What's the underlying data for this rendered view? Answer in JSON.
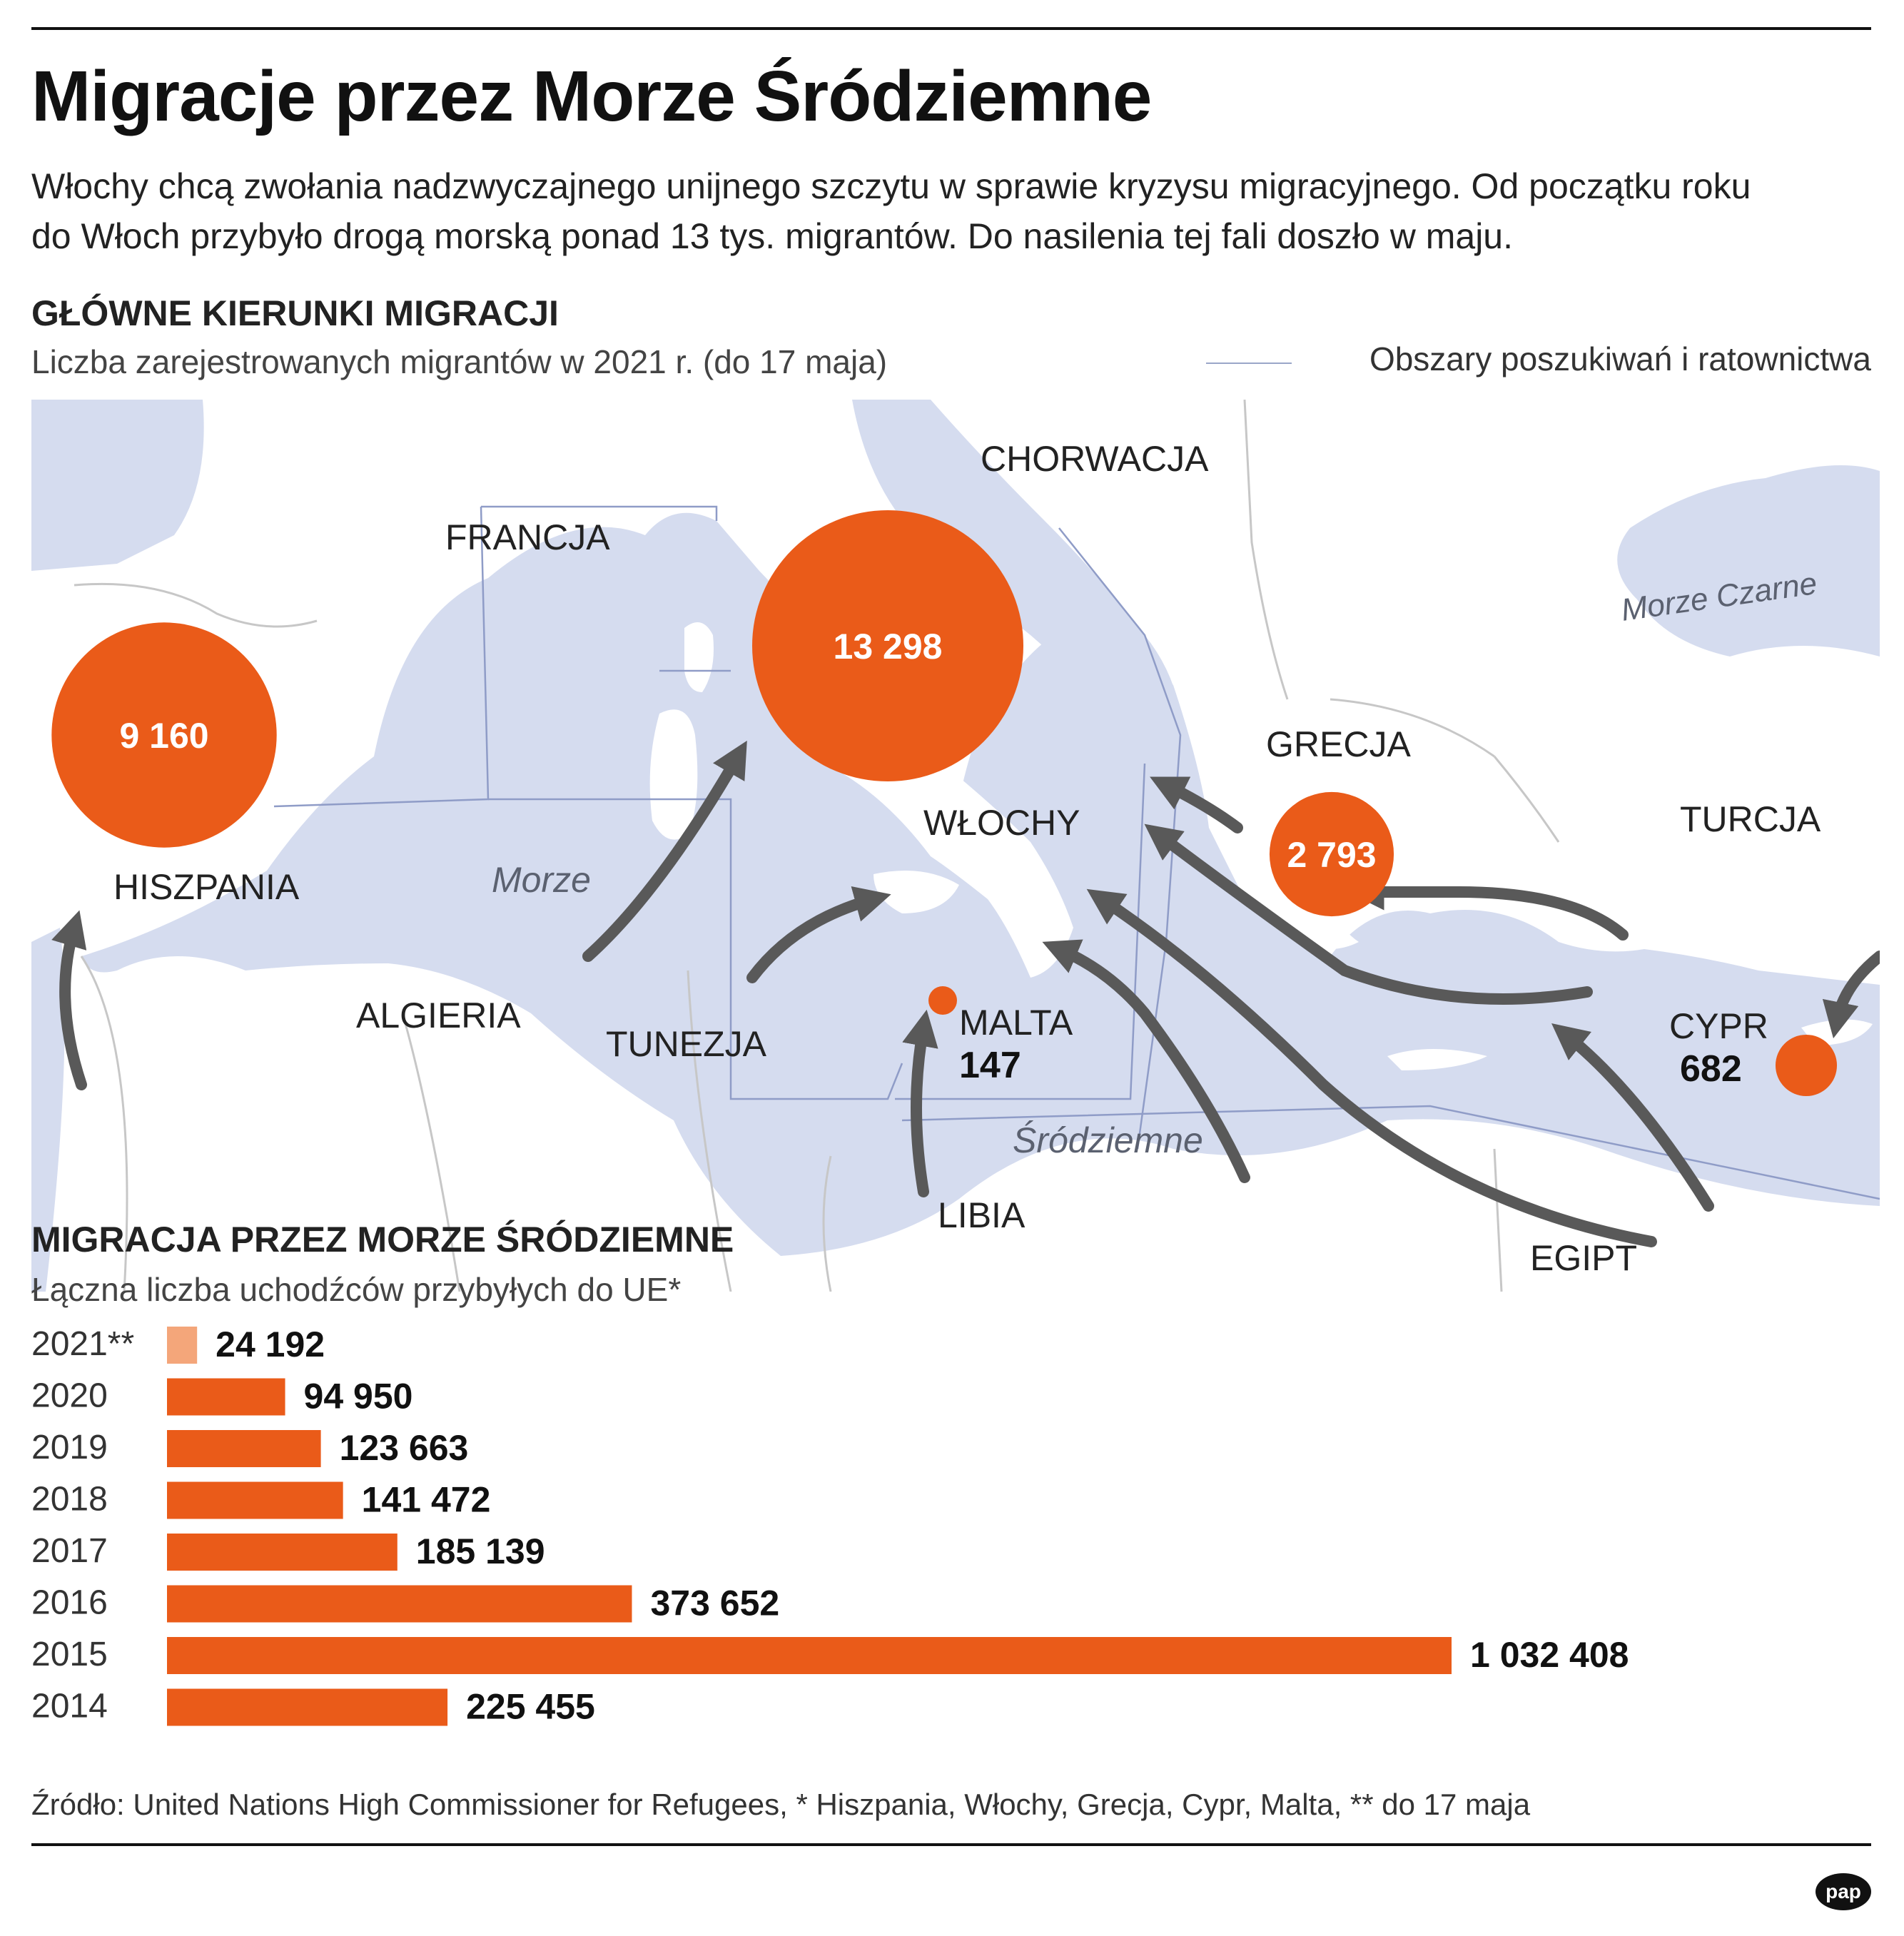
{
  "header": {
    "title": "Migracje przez Morze Śródziemne",
    "lead_line1": "Włochy chcą zwołania nadzwyczajnego unijnego szczytu w sprawie kryzysu migracyjnego. Od początku roku",
    "lead_line2": "do Włoch przybyło drogą morską ponad 13 tys. migrantów. Do nasilenia tej fali doszło w maju."
  },
  "map_section": {
    "heading": "GŁÓWNE KIERUNKI MIGRACJI",
    "subheading": "Liczba zarejestrowanych migrantów w 2021 r. (do 17 maja)",
    "legend_label": "Obszary poszukiwań i ratownictwa",
    "country_labels": [
      "FRANCJA",
      "CHORWACJA",
      "HISZPANIA",
      "WŁOCHY",
      "GRECJA",
      "TURCJA",
      "ALGIERIA",
      "TUNEZJA",
      "MALTA",
      "LIBIA",
      "EGIPT",
      "CYPR"
    ],
    "sea_labels": [
      "Morze Czarne",
      "Morze",
      "Śródziemne"
    ],
    "colors": {
      "sea": "#d5dcef",
      "land": "#ffffff",
      "border": "#c7c7c7",
      "sar_line": "#8f9cc7",
      "bubble": "#ea5b19",
      "arrow": "#595959"
    }
  },
  "chart_data": [
    {
      "type": "bubble",
      "title": "",
      "points": [
        {
          "label": "Hiszpania",
          "value": 9160,
          "value_label": "9 160"
        },
        {
          "label": "Włochy",
          "value": 13298,
          "value_label": "13 298"
        },
        {
          "label": "Grecja",
          "value": 2793,
          "value_label": "2 793"
        },
        {
          "label": "Malta",
          "value": 147,
          "value_label": "147"
        },
        {
          "label": "Cypr",
          "value": 682,
          "value_label": "682"
        }
      ]
    },
    {
      "type": "bar",
      "orientation": "horizontal",
      "title": "MIGRACJA PRZEZ MORZE ŚRÓDZIEMNE",
      "subtitle": "Łączna liczba uchodźców przybyłych do UE*",
      "categories": [
        "2021**",
        "2020",
        "2019",
        "2018",
        "2017",
        "2016",
        "2015",
        "2014"
      ],
      "values": [
        24192,
        94950,
        123663,
        141472,
        185139,
        373652,
        1032408,
        225455
      ],
      "value_labels": [
        "24 192",
        "94 950",
        "123 663",
        "141 472",
        "185 139",
        "373 652",
        "1 032 408",
        "225 455"
      ],
      "bar_colors": [
        "#f4a67a",
        "#ea5b19",
        "#ea5b19",
        "#ea5b19",
        "#ea5b19",
        "#ea5b19",
        "#ea5b19",
        "#ea5b19"
      ],
      "xlim": [
        0,
        1032408
      ],
      "grid": false,
      "legend": "none"
    }
  ],
  "footer": {
    "source": "Źródło: United Nations High Commissioner for Refugees, * Hiszpania, Włochy, Grecja, Cypr, Malta, ** do 17 maja",
    "logo": "pap"
  }
}
